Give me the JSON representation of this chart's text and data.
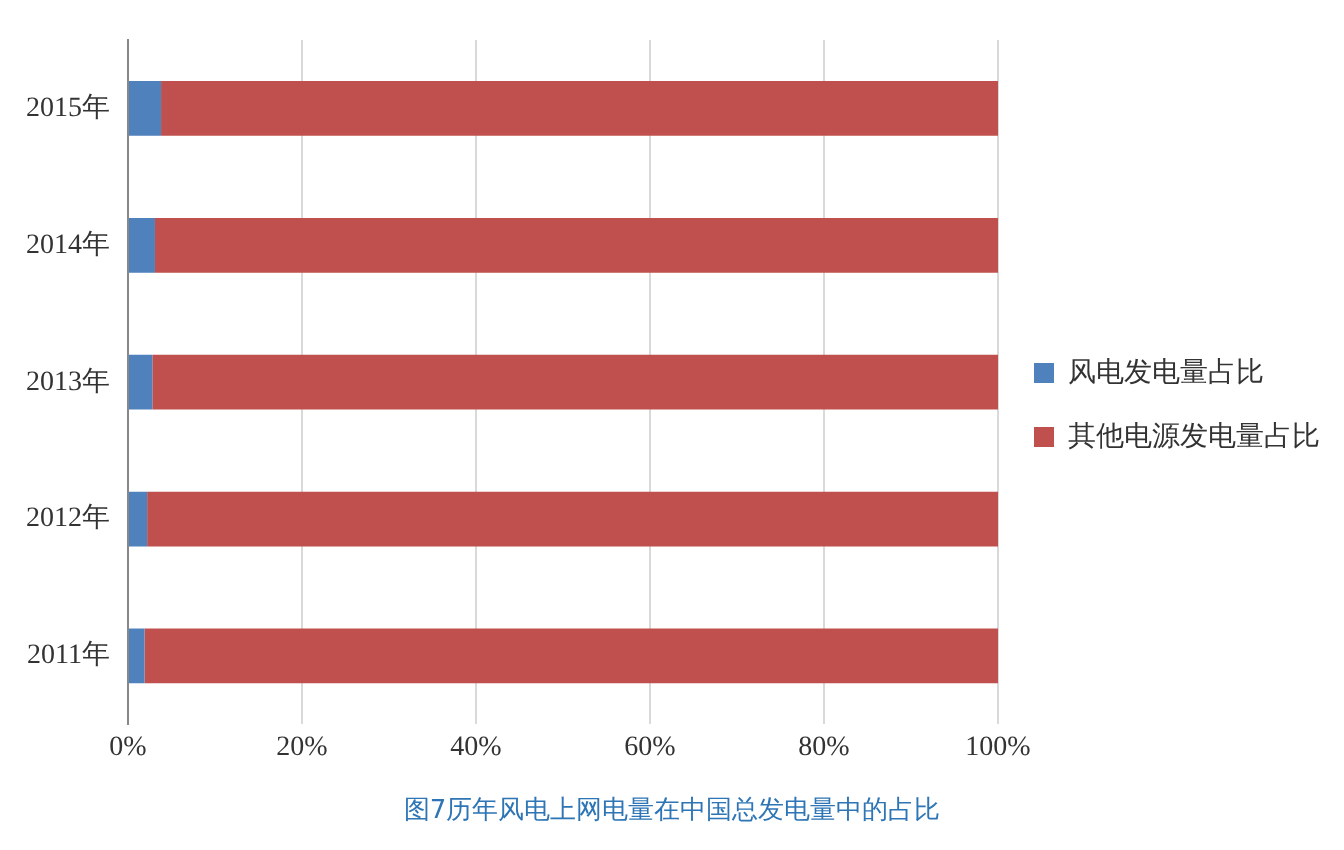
{
  "chart_data": {
    "type": "bar",
    "orientation": "horizontal",
    "stacked": true,
    "categories": [
      "2015年",
      "2014年",
      "2013年",
      "2012年",
      "2011年"
    ],
    "series": [
      {
        "name": "风电发电量占比",
        "color": "#4f81bd",
        "values": [
          3.8,
          3.1,
          2.8,
          2.2,
          1.9
        ]
      },
      {
        "name": "其他电源发电量占比",
        "color": "#c0504d",
        "values": [
          96.2,
          96.9,
          97.2,
          97.8,
          98.1
        ]
      }
    ],
    "xlim": [
      0,
      100
    ],
    "xticks": [
      {
        "value": 0,
        "label": "0%"
      },
      {
        "value": 20,
        "label": "20%"
      },
      {
        "value": 40,
        "label": "40%"
      },
      {
        "value": 60,
        "label": "60%"
      },
      {
        "value": 80,
        "label": "80%"
      },
      {
        "value": 100,
        "label": "100%"
      }
    ],
    "grid": "x",
    "legend": "right",
    "annotations": [
      "图7历年风电上网电量在中国总发电量中的占比"
    ]
  }
}
